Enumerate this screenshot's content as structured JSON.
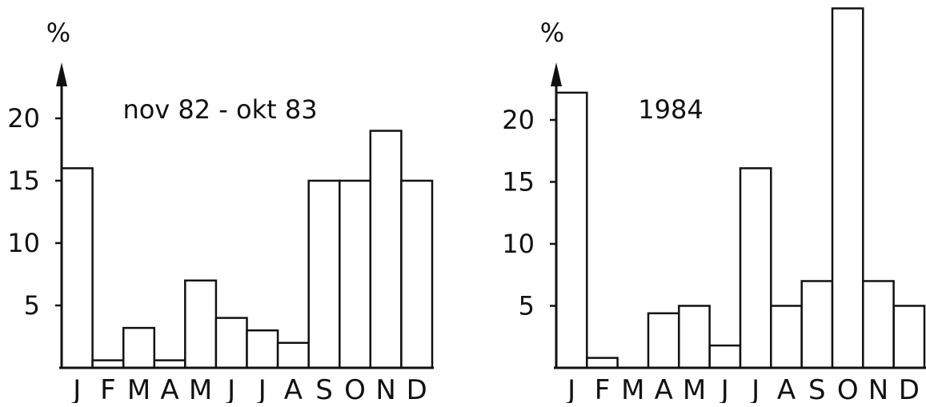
{
  "chart_data": [
    {
      "type": "bar",
      "title": "nov 82 - okt 83",
      "ylabel": "%",
      "xlabel": "",
      "categories": [
        "J",
        "F",
        "M",
        "A",
        "M",
        "J",
        "J",
        "A",
        "S",
        "O",
        "N",
        "D"
      ],
      "values": [
        16,
        0.6,
        3.2,
        0.6,
        7,
        4,
        3,
        2,
        15,
        15,
        19,
        15
      ],
      "yticks": [
        "5",
        "10",
        "15",
        "20"
      ],
      "ylim": [
        0,
        25
      ],
      "grid": false,
      "legend": "none"
    },
    {
      "type": "bar",
      "title": "1984",
      "ylabel": "%",
      "xlabel": "",
      "categories": [
        "J",
        "F",
        "M",
        "A",
        "M",
        "J",
        "J",
        "A",
        "S",
        "O",
        "N",
        "D"
      ],
      "values": [
        22.2,
        0.8,
        0,
        4.4,
        5,
        1.8,
        16.1,
        5,
        7,
        29,
        7,
        5
      ],
      "yticks": [
        "5",
        "10",
        "15",
        "20"
      ],
      "ylim": [
        0,
        29
      ],
      "grid": false,
      "legend": "none"
    }
  ]
}
